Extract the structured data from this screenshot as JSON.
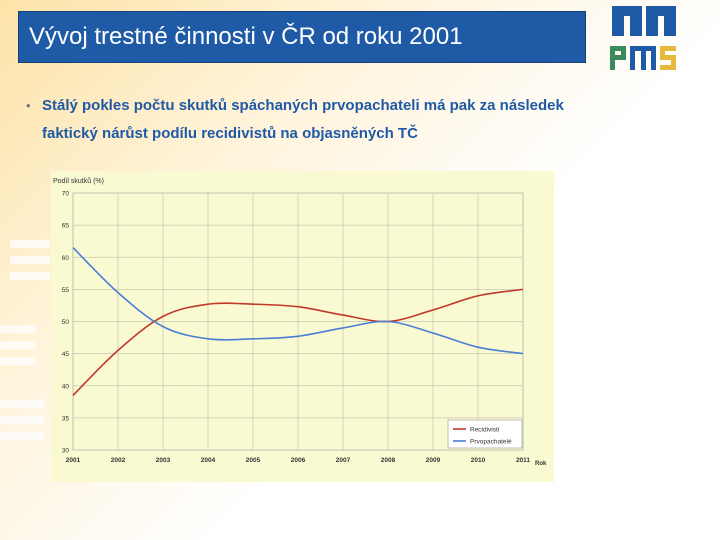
{
  "header": {
    "title": "Vývoj trestné činnosti v ČR od roku 2001"
  },
  "bullet": {
    "marker": "•",
    "text": "Stálý pokles počtu skutků spáchaných prvopachateli má pak za následek faktický nárůst podílu recidivistů na objasněných TČ"
  },
  "colors": {
    "title_bar": "#1f5aa6",
    "bullet_text": "#1f5aa6",
    "logo_blue": "#1f5aa6",
    "logo_green": "#3a8c5c",
    "logo_yellow": "#e8b83a",
    "recidivisti": "#c0392b",
    "prvopachatele": "#4a7fd4"
  },
  "chart_data": {
    "type": "line",
    "ylabel": "Podíl skutků (%)",
    "xlabel": "Rok",
    "ylim": [
      30,
      70
    ],
    "yticks": [
      30,
      35,
      40,
      45,
      50,
      55,
      60,
      65,
      70
    ],
    "x": [
      "2001",
      "2002",
      "2003",
      "2004",
      "2005",
      "2006",
      "2007",
      "2008",
      "2009",
      "2010",
      "2011"
    ],
    "grid": true,
    "legend_position": "bottom-right",
    "series": [
      {
        "name": "Recidivisti",
        "values": [
          38.5,
          45.5,
          50.8,
          52.7,
          52.7,
          52.3,
          51.0,
          50.0,
          51.8,
          54.0,
          55.0
        ]
      },
      {
        "name": "Prvopachatelé",
        "values": [
          61.5,
          54.5,
          49.2,
          47.3,
          47.3,
          47.7,
          49.0,
          50.0,
          48.2,
          46.0,
          45.0
        ]
      }
    ]
  }
}
